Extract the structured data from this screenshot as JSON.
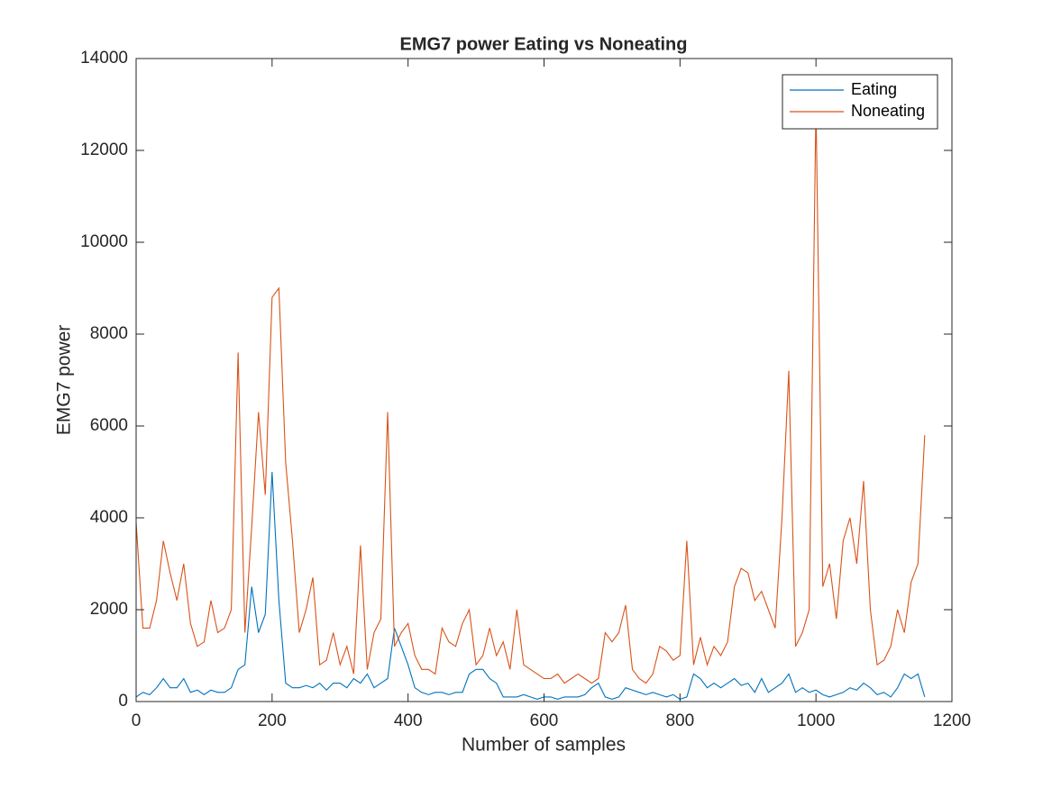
{
  "chart_data": {
    "type": "line",
    "title": "EMG7 power Eating vs Noneating",
    "x_label": "Number of samples",
    "y_label": "EMG7 power",
    "x": [
      0,
      10,
      20,
      30,
      40,
      50,
      60,
      70,
      80,
      90,
      100,
      110,
      120,
      130,
      140,
      150,
      160,
      170,
      180,
      190,
      200,
      210,
      220,
      230,
      240,
      250,
      260,
      270,
      280,
      290,
      300,
      310,
      320,
      330,
      340,
      350,
      360,
      370,
      380,
      390,
      400,
      410,
      420,
      430,
      440,
      450,
      460,
      470,
      480,
      490,
      500,
      510,
      520,
      530,
      540,
      550,
      560,
      570,
      580,
      590,
      600,
      610,
      620,
      630,
      640,
      650,
      660,
      670,
      680,
      690,
      700,
      710,
      720,
      730,
      740,
      750,
      760,
      770,
      780,
      790,
      800,
      810,
      820,
      830,
      840,
      850,
      860,
      870,
      880,
      890,
      900,
      910,
      920,
      930,
      940,
      950,
      960,
      970,
      980,
      990,
      1000,
      1010,
      1020,
      1030,
      1040,
      1050,
      1060,
      1070,
      1080,
      1090,
      1100,
      1110,
      1120,
      1130,
      1140,
      1150,
      1160
    ],
    "series": [
      {
        "name": "Eating",
        "color": "#0072BD",
        "values": [
          100,
          200,
          150,
          300,
          500,
          300,
          300,
          500,
          200,
          250,
          150,
          250,
          200,
          200,
          300,
          700,
          800,
          2500,
          1500,
          1900,
          5000,
          2200,
          400,
          300,
          300,
          350,
          300,
          400,
          250,
          400,
          400,
          300,
          500,
          400,
          600,
          300,
          400,
          500,
          1600,
          1200,
          800,
          300,
          200,
          150,
          200,
          200,
          150,
          200,
          200,
          600,
          700,
          700,
          500,
          400,
          100,
          100,
          100,
          150,
          100,
          50,
          100,
          100,
          50,
          100,
          100,
          100,
          150,
          300,
          400,
          100,
          50,
          100,
          300,
          250,
          200,
          150,
          200,
          150,
          100,
          150,
          50,
          100,
          600,
          500,
          300,
          400,
          300,
          400,
          500,
          350,
          400,
          200,
          500,
          200,
          300,
          400,
          600,
          200,
          300,
          200,
          250,
          150,
          100,
          150,
          200,
          300,
          250,
          400,
          300,
          150,
          200,
          100,
          300,
          600,
          500,
          600,
          100
        ]
      },
      {
        "name": "Noneating",
        "color": "#D95319",
        "values": [
          3900,
          1600,
          1600,
          2200,
          3500,
          2800,
          2200,
          3000,
          1700,
          1200,
          1300,
          2200,
          1500,
          1600,
          2000,
          7600,
          1500,
          3800,
          6300,
          4500,
          8800,
          9000,
          5200,
          3500,
          1500,
          2000,
          2700,
          800,
          900,
          1500,
          800,
          1200,
          600,
          3400,
          700,
          1500,
          1800,
          6300,
          1200,
          1500,
          1700,
          1000,
          700,
          700,
          600,
          1600,
          1300,
          1200,
          1700,
          2000,
          800,
          1000,
          1600,
          1000,
          1300,
          700,
          2000,
          800,
          700,
          600,
          500,
          500,
          600,
          400,
          500,
          600,
          500,
          400,
          500,
          1500,
          1300,
          1500,
          2100,
          700,
          500,
          400,
          600,
          1200,
          1100,
          900,
          1000,
          3500,
          800,
          1400,
          800,
          1200,
          1000,
          1300,
          2500,
          2900,
          2800,
          2200,
          2400,
          2000,
          1600,
          4000,
          7200,
          1200,
          1500,
          2000,
          13000,
          2500,
          3000,
          1800,
          3500,
          4000,
          3000,
          4800,
          2000,
          800,
          900,
          1200,
          2000,
          1500,
          2600,
          3000,
          5800
        ]
      }
    ],
    "xlim": [
      0,
      1200
    ],
    "xticks": [
      0,
      200,
      400,
      600,
      800,
      1000,
      1200
    ],
    "ylim": [
      0,
      14000
    ],
    "yticks": [
      0,
      2000,
      4000,
      6000,
      8000,
      10000,
      12000,
      14000
    ],
    "legend": "northeast",
    "grid": false
  }
}
